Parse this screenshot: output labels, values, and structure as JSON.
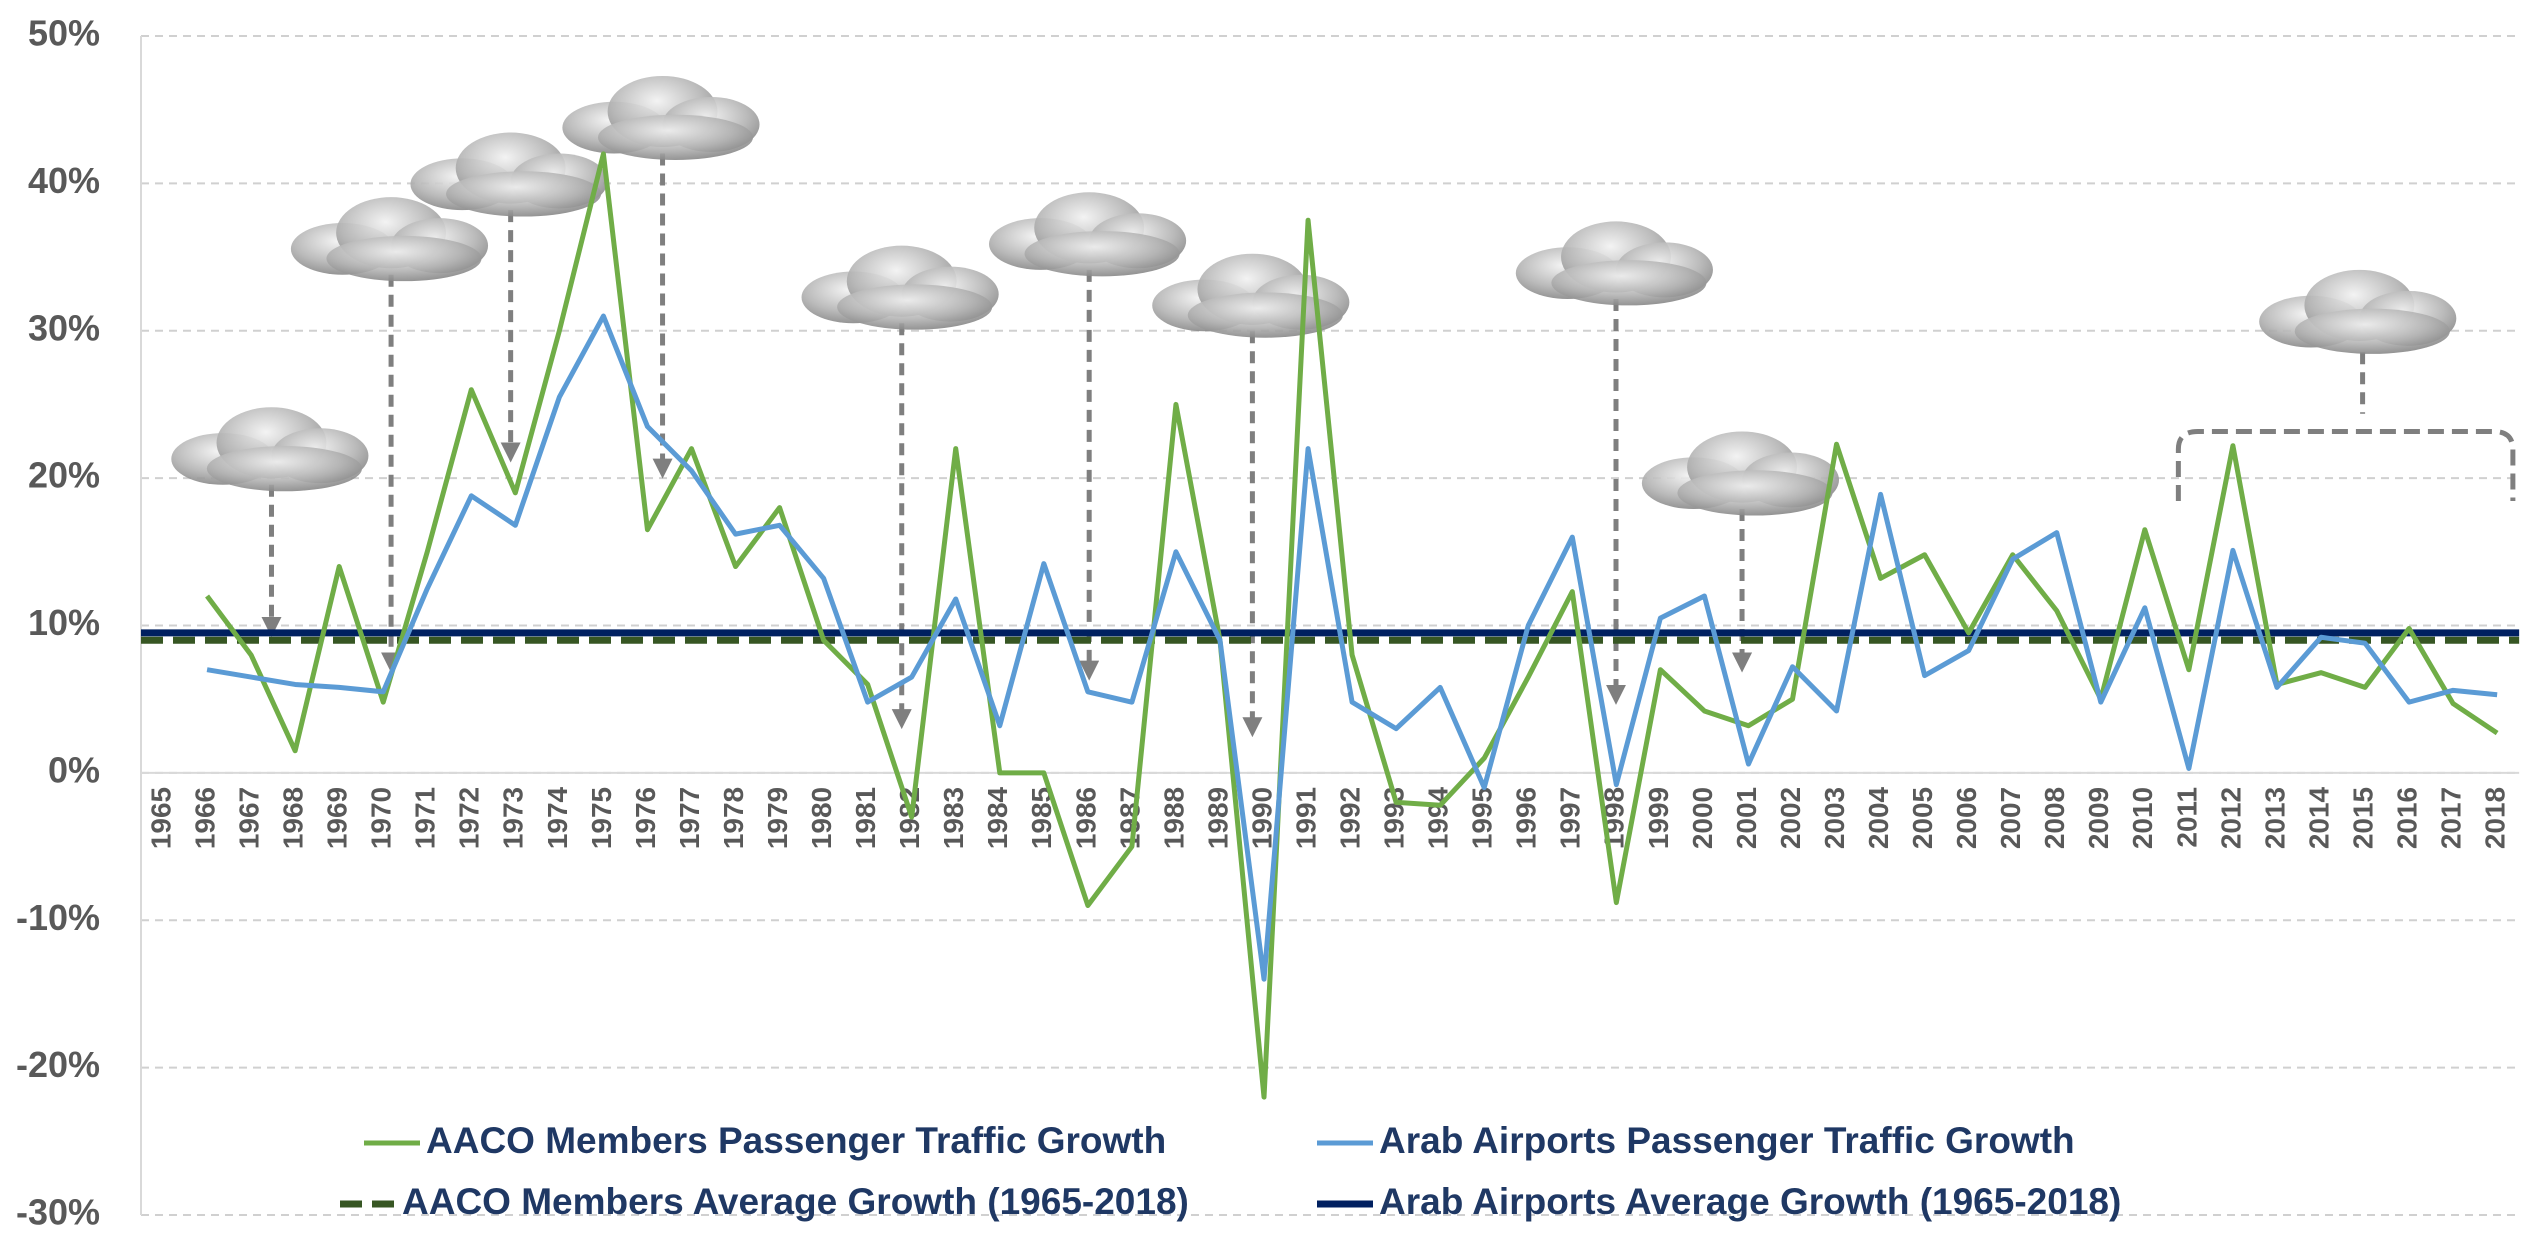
{
  "chart_data": {
    "type": "line",
    "categories": [
      "1965",
      "1966",
      "1967",
      "1968",
      "1969",
      "1970",
      "1971",
      "1972",
      "1973",
      "1974",
      "1975",
      "1976",
      "1977",
      "1978",
      "1979",
      "1980",
      "1981",
      "1982",
      "1983",
      "1984",
      "1985",
      "1986",
      "1987",
      "1988",
      "1989",
      "1990",
      "1991",
      "1992",
      "1993",
      "1994",
      "1995",
      "1996",
      "1997",
      "1998",
      "1999",
      "2000",
      "2001",
      "2002",
      "2003",
      "2004",
      "2005",
      "2006",
      "2007",
      "2008",
      "2009",
      "2010",
      "2011",
      "2012",
      "2013",
      "2014",
      "2015",
      "2016",
      "2017",
      "2018"
    ],
    "series": [
      {
        "name": "AACO Members Passenger Traffic Growth",
        "color": "#70ad47",
        "values": [
          null,
          12,
          8,
          1.5,
          14,
          4.8,
          15,
          26,
          19,
          30,
          42,
          16.5,
          22,
          14,
          18,
          9,
          6,
          -3,
          22,
          0,
          0,
          -9,
          -5,
          25,
          9,
          -22,
          37.5,
          8,
          -2,
          -2.2,
          1,
          6.5,
          12.3,
          -8.8,
          7,
          4.2,
          3.2,
          5,
          22.3,
          13.2,
          14.8,
          9.5,
          14.8,
          11,
          5,
          16.5,
          7,
          22.2,
          6,
          6.8,
          5.8,
          9.8,
          4.7,
          2.7
        ]
      },
      {
        "name": "Arab Airports Passenger Traffic Growth",
        "color": "#5b9bd5",
        "values": [
          null,
          7,
          6.5,
          6,
          5.8,
          5.5,
          12.5,
          18.8,
          16.8,
          25.5,
          31,
          23.5,
          20.5,
          16.2,
          16.8,
          13.2,
          4.8,
          6.5,
          11.8,
          3.2,
          14.2,
          5.5,
          4.8,
          15,
          9,
          -14,
          22,
          4.8,
          3,
          5.8,
          -1,
          10,
          16,
          -0.8,
          10.5,
          12,
          0.6,
          7.2,
          4.2,
          18.9,
          6.6,
          8.3,
          14.5,
          16.3,
          4.8,
          11.2,
          0.3,
          15.1,
          5.8,
          9.2,
          8.8,
          4.8,
          5.6,
          5.3
        ]
      }
    ],
    "reference_lines": [
      {
        "name": "AACO Members Average Growth (1965-2018)",
        "value": 9,
        "color": "#375623",
        "dashed": true
      },
      {
        "name": "Arab Airports Average Growth (1965-2018)",
        "value": 9.5,
        "color": "#002060",
        "dashed": false
      }
    ],
    "ylim": [
      -30,
      50
    ],
    "yticks": [
      {
        "value": -30,
        "label": "-30%"
      },
      {
        "value": -20,
        "label": "-20%"
      },
      {
        "value": -10,
        "label": "-10%"
      },
      {
        "value": 0,
        "label": "0%"
      },
      {
        "value": 10,
        "label": "10%"
      },
      {
        "value": 20,
        "label": "20%"
      },
      {
        "value": 30,
        "label": "30%"
      },
      {
        "value": 40,
        "label": "40%"
      },
      {
        "value": 50,
        "label": "50%"
      }
    ],
    "grid": true
  }
}
